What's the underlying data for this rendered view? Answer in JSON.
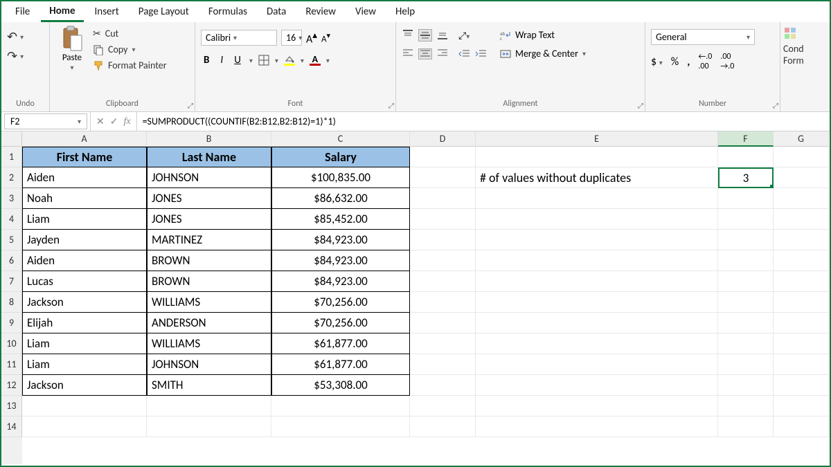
{
  "menu": {
    "items": [
      "File",
      "Home",
      "Insert",
      "Page Layout",
      "Formulas",
      "Data",
      "Review",
      "View",
      "Help"
    ],
    "active_index": 1
  },
  "ribbon": {
    "undo": {
      "label": "Undo"
    },
    "clipboard": {
      "label": "Clipboard",
      "paste": "Paste",
      "cut": "Cut",
      "copy": "Copy",
      "format_painter": "Format Painter"
    },
    "font": {
      "label": "Font",
      "name": "Calibri",
      "size": "16"
    },
    "alignment": {
      "label": "Alignment",
      "wrap": "Wrap Text",
      "merge": "Merge & Center"
    },
    "number": {
      "label": "Number",
      "format": "General"
    },
    "right_edge": {
      "cond1": "Cond",
      "cond2": "Form"
    }
  },
  "namebox": "F2",
  "formula": "=SUMPRODUCT((COUNTIF(B2:B12,B2:B12)=1)*1)",
  "columns": [
    "A",
    "B",
    "C",
    "D",
    "E",
    "F",
    "G"
  ],
  "col_widths": [
    "w-A",
    "w-B",
    "w-C",
    "w-D",
    "w-E",
    "w-F",
    "w-G"
  ],
  "selected_col": "F",
  "row_count": 14,
  "headers": [
    "First Name",
    "Last Name",
    "Salary"
  ],
  "data_rows": [
    [
      "Aiden",
      "JOHNSON",
      "$100,835.00"
    ],
    [
      "Noah",
      "JONES",
      "$86,632.00"
    ],
    [
      "Liam",
      "JONES",
      "$85,452.00"
    ],
    [
      "Jayden",
      "MARTINEZ",
      "$84,923.00"
    ],
    [
      "Aiden",
      "BROWN",
      "$84,923.00"
    ],
    [
      "Lucas",
      "BROWN",
      "$84,923.00"
    ],
    [
      "Jackson",
      "WILLIAMS",
      "$70,256.00"
    ],
    [
      "Elijah",
      "ANDERSON",
      "$70,256.00"
    ],
    [
      "Liam",
      "WILLIAMS",
      "$61,877.00"
    ],
    [
      "Liam",
      "JOHNSON",
      "$61,877.00"
    ],
    [
      "Jackson",
      "SMITH",
      "$53,308.00"
    ]
  ],
  "e2_label": "# of values without duplicates",
  "f2_value": "3",
  "colors": {
    "header_fill": "#9bc2e6",
    "accent": "#107c41",
    "fill_yellow": "#ffff00",
    "font_red": "#c00000"
  }
}
